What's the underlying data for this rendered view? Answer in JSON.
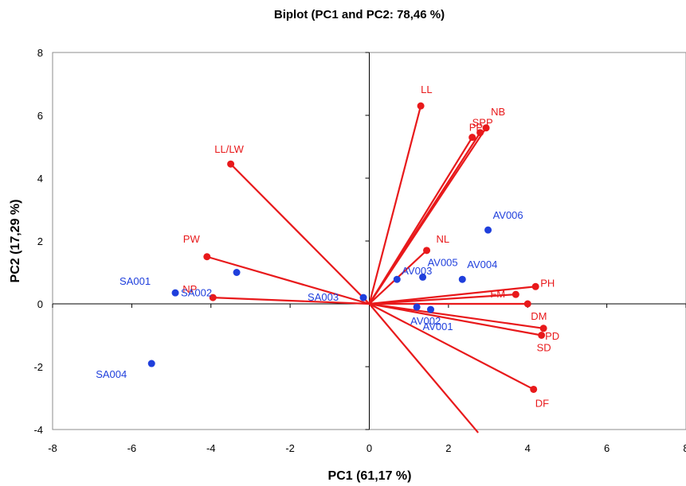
{
  "chart_data": {
    "type": "scatter",
    "title": "Biplot (PC1 and PC2: 78,46 %)",
    "xlabel": "PC1 (61,17 %)",
    "ylabel": "PC2 (17,29 %)",
    "xlim": [
      -8,
      8
    ],
    "ylim": [
      -4,
      8
    ],
    "xticks": [
      "-8",
      "-6",
      "-4",
      "-2",
      "0",
      "2",
      "4",
      "6",
      "8"
    ],
    "yticks": [
      "-4",
      "-2",
      "0",
      "2",
      "4",
      "6",
      "8"
    ],
    "grid": false,
    "colors": {
      "observations": "#1f3fdc",
      "variables": "#e8191b",
      "axes": "#000000"
    },
    "observations": [
      {
        "label": "SA001",
        "x": -4.9,
        "y": 0.35
      },
      {
        "label": "SA002",
        "x": -3.35,
        "y": 1.0
      },
      {
        "label": "SA003",
        "x": -0.15,
        "y": 0.2
      },
      {
        "label": "SA004",
        "x": -5.5,
        "y": -1.9
      },
      {
        "label": "AV001",
        "x": 1.55,
        "y": -0.18
      },
      {
        "label": "AV002",
        "x": 1.2,
        "y": -0.1
      },
      {
        "label": "AV003",
        "x": 0.7,
        "y": 0.78
      },
      {
        "label": "AV004",
        "x": 2.35,
        "y": 0.78
      },
      {
        "label": "AV005",
        "x": 1.35,
        "y": 0.85
      },
      {
        "label": "AV006",
        "x": 3.0,
        "y": 2.35
      }
    ],
    "variables": [
      {
        "label": "LL",
        "x": 1.3,
        "y": 6.3
      },
      {
        "label": "NB",
        "x": 2.95,
        "y": 5.6
      },
      {
        "label": "SPP",
        "x": 2.8,
        "y": 5.45
      },
      {
        "label": "PP",
        "x": 2.6,
        "y": 5.3
      },
      {
        "label": "LL/LW",
        "x": -3.5,
        "y": 4.45
      },
      {
        "label": "NL",
        "x": 1.45,
        "y": 1.7
      },
      {
        "label": "PW",
        "x": -4.1,
        "y": 1.5
      },
      {
        "label": "NP",
        "x": -3.95,
        "y": 0.2
      },
      {
        "label": "PH",
        "x": 4.2,
        "y": 0.55
      },
      {
        "label": "FM",
        "x": 3.7,
        "y": 0.3
      },
      {
        "label": "DM",
        "x": 4.0,
        "y": 0.0
      },
      {
        "label": "PD",
        "x": 4.4,
        "y": -0.78
      },
      {
        "label": "SD",
        "x": 4.35,
        "y": -1.0
      },
      {
        "label": "DF",
        "x": 4.15,
        "y": -2.72
      },
      {
        "label": "",
        "x": 2.75,
        "y": -4.1
      }
    ]
  }
}
